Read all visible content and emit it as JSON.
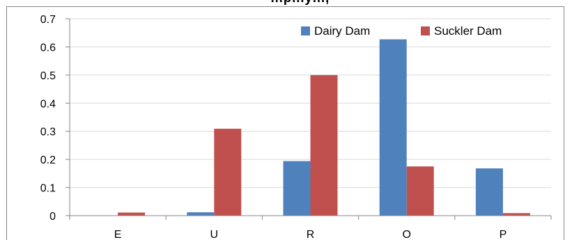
{
  "chart_data": {
    "type": "bar",
    "title": "…p…y…,",
    "xlabel": "",
    "ylabel": "",
    "categories": [
      "E",
      "U",
      "R",
      "O",
      "P"
    ],
    "series": [
      {
        "name": "Dairy Dam",
        "values": [
          0.0,
          0.012,
          0.194,
          0.627,
          0.168
        ],
        "color": "#4f81bd"
      },
      {
        "name": "Suckler Dam",
        "values": [
          0.011,
          0.309,
          0.5,
          0.175,
          0.009
        ],
        "color": "#c0504d"
      }
    ],
    "ylim": [
      0,
      0.7
    ],
    "yticks": [
      "0",
      "0.1",
      "0.2",
      "0.3",
      "0.4",
      "0.5",
      "0.6",
      "0.7"
    ],
    "grid": true,
    "legend_position": "top-right",
    "colors": {
      "gridline": "#d9d9d9",
      "axis": "#868686",
      "border": "#868686"
    }
  }
}
